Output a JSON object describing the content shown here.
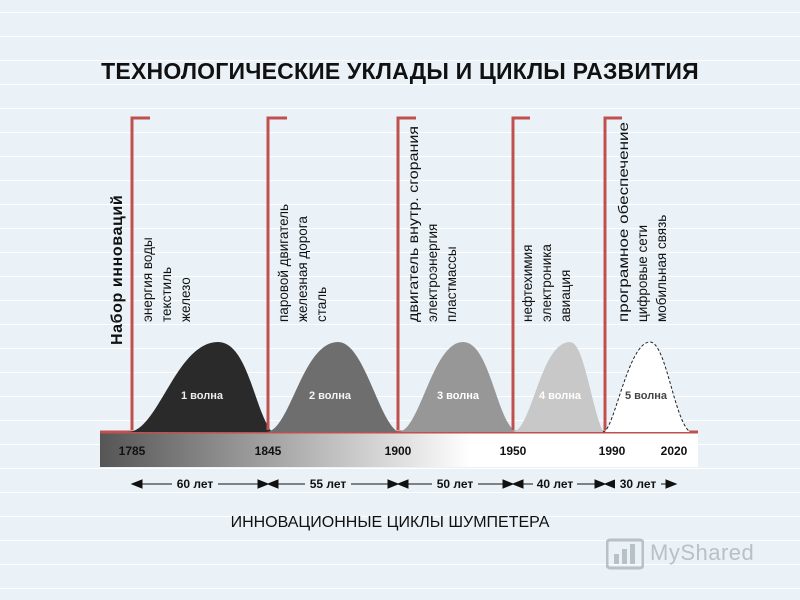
{
  "title": "ТЕХНОЛОГИЧЕСКИЕ УКЛАДЫ И ЦИКЛЫ РАЗВИТИЯ",
  "subtitle": "ИННОВАЦИОННЫЕ ЦИКЛЫ ШУМПЕТЕРА",
  "innovations_label": "Набор инноваций",
  "years": [
    "1785",
    "1845",
    "1900",
    "1950",
    "1990",
    "2020"
  ],
  "durations": [
    "60 лет",
    "55 лет",
    "50 лет",
    "40 лет",
    "30 лет"
  ],
  "waves": [
    {
      "label": "1 волна",
      "color": "#2a2a2a",
      "innovations": [
        "энергия воды",
        "текстиль",
        "железо"
      ]
    },
    {
      "label": "2 волна",
      "color": "#6e6e6e",
      "innovations": [
        "паровой двигатель",
        "железная дорога",
        "сталь"
      ]
    },
    {
      "label": "3 волна",
      "color": "#979797",
      "innovations": [
        "двигатель внутр. сгорания",
        "электроэнергия",
        "пластмассы"
      ]
    },
    {
      "label": "4 волна",
      "color": "#c8c8c8",
      "innovations": [
        "нефтехимия",
        "электроника",
        "авиация"
      ]
    },
    {
      "label": "5 волна",
      "color": "#ffffff",
      "innovations": [
        "програмное обеспечение",
        "цифровые сети",
        "мобильная связь"
      ]
    }
  ],
  "watermark": "MyShared",
  "colors": {
    "bracket": "#c0504d",
    "timeline_dark": "#5a5a5a",
    "background": "#eaf2f8"
  }
}
